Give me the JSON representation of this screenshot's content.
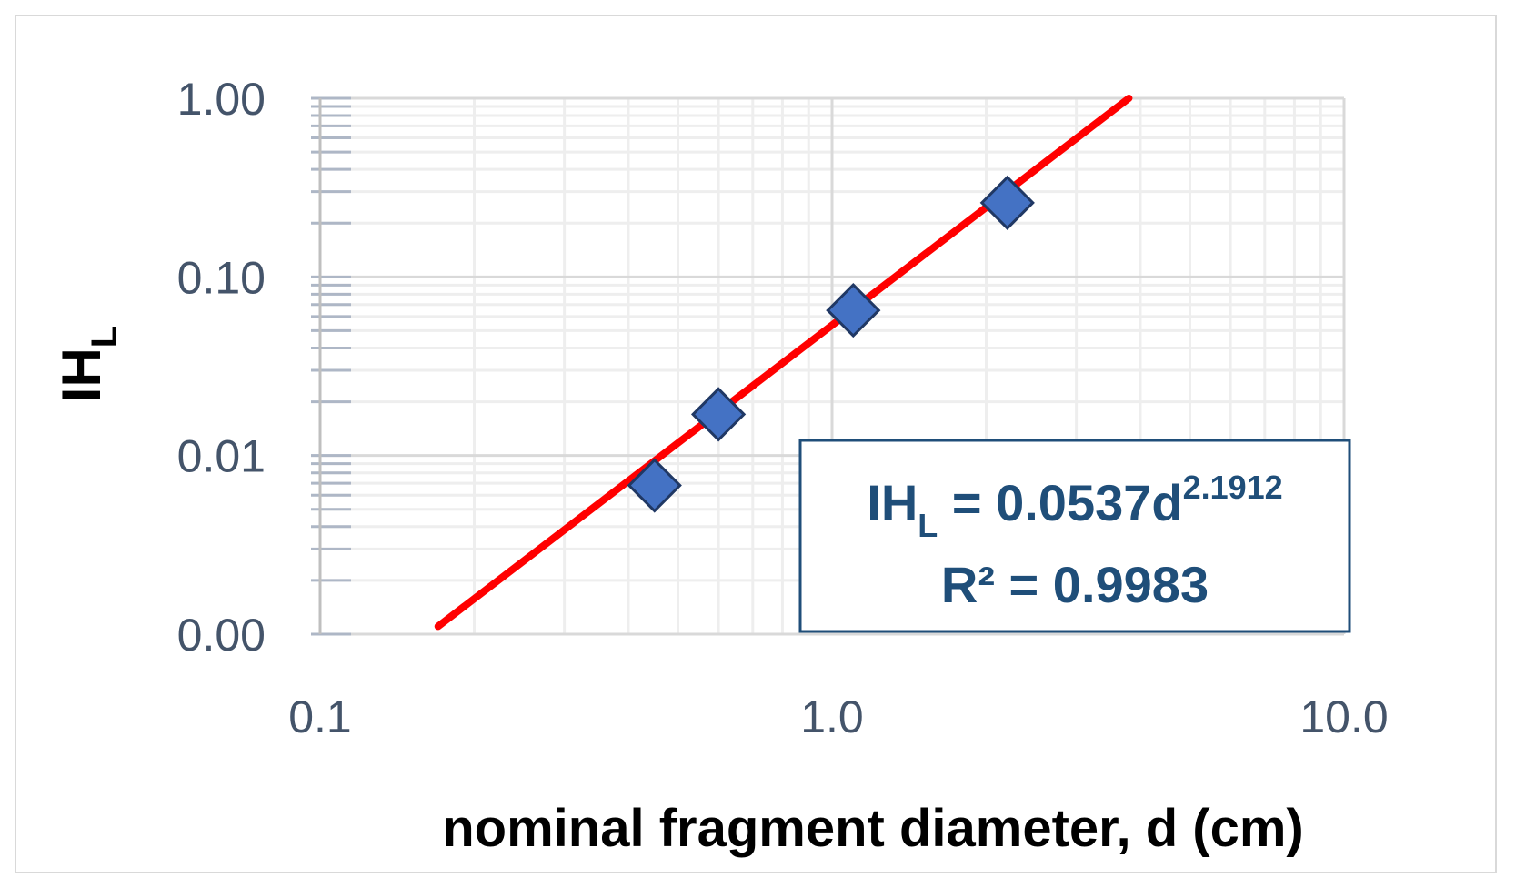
{
  "chart_data": {
    "type": "scatter",
    "title": "",
    "xlabel": "nominal fragment diameter, d (cm)",
    "ylabel": {
      "main": "IH",
      "sub": "L"
    },
    "x_scale": "log",
    "y_scale": "log",
    "xlim": [
      0.1,
      10.0
    ],
    "ylim": [
      0.001,
      1.0
    ],
    "x_ticks": [
      0.1,
      1.0,
      10.0
    ],
    "x_tick_labels": [
      "0.1",
      "1.0",
      "10.0"
    ],
    "y_ticks": [
      0.001,
      0.01,
      0.1,
      1.0
    ],
    "y_tick_labels": [
      "0.00",
      "0.01",
      "0.10",
      "1.00"
    ],
    "grid": true,
    "series": [
      {
        "type": "scatter",
        "marker": "diamond",
        "color": "#4472c4",
        "points": [
          {
            "x": 0.45,
            "y": 0.0068
          },
          {
            "x": 0.6,
            "y": 0.017
          },
          {
            "x": 1.1,
            "y": 0.065
          },
          {
            "x": 2.2,
            "y": 0.26
          }
        ]
      },
      {
        "type": "trendline",
        "color": "#ff0000",
        "coefficient": 0.0537,
        "exponent": 2.1912,
        "x_range": [
          0.17,
          3.8
        ]
      }
    ],
    "annotation": {
      "equation_lhs": "IH",
      "equation_sub": "L",
      "equation_rhs": " = 0.0537d",
      "equation_exp": "2.1912",
      "r2_label": "R² = 0.9983"
    }
  },
  "colors": {
    "axis_text": "#44546a",
    "grid_major": "#d9d9d9",
    "grid_minor": "#eeeeee",
    "marker_fill": "#4472c4",
    "marker_stroke": "#203864",
    "trendline": "#ff0000",
    "annotation": "#1f4e79"
  }
}
